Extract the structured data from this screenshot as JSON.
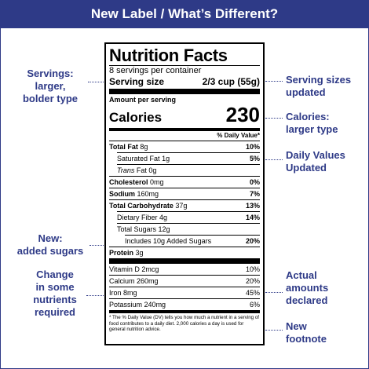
{
  "header": {
    "title": "New Label / What’s Different?"
  },
  "notes": {
    "servings": [
      "Servings:",
      "larger,",
      "bolder type"
    ],
    "serving_sizes": [
      "Serving sizes",
      "updated"
    ],
    "calories": [
      "Calories:",
      "larger type"
    ],
    "daily_values": [
      "Daily Values",
      "Updated"
    ],
    "added_sugars": [
      "New:",
      "added sugars"
    ],
    "nutrients": [
      "Change",
      "in some",
      "nutrients",
      "required"
    ],
    "actual_amounts": [
      "Actual",
      "amounts",
      "declared"
    ],
    "footnote": [
      "New",
      "footnote"
    ]
  },
  "label": {
    "title": "Nutrition Facts",
    "servings_per_container": "8 servings per container",
    "serving_size_label": "Serving size",
    "serving_size_value": "2/3 cup (55g)",
    "amount_per_serving": "Amount per serving",
    "calories_label": "Calories",
    "calories_value": "230",
    "dv_header": "% Daily Value*",
    "nutrients": [
      {
        "name": "Total Fat",
        "amount": "8g",
        "dv": "10%"
      },
      {
        "name": "Saturated Fat",
        "amount": "1g",
        "dv": "5%"
      },
      {
        "name": "Trans",
        "name_suffix": "Fat",
        "amount": "0g",
        "dv": ""
      },
      {
        "name": "Cholesterol",
        "amount": "0mg",
        "dv": "0%"
      },
      {
        "name": "Sodium",
        "amount": "160mg",
        "dv": "7%"
      },
      {
        "name": "Total Carbohydrate",
        "amount": "37g",
        "dv": "13%"
      },
      {
        "name": "Dietary Fiber",
        "amount": "4g",
        "dv": "14%"
      },
      {
        "name": "Total Sugars",
        "amount": "12g",
        "dv": ""
      },
      {
        "name": "Includes",
        "amount": "10g Added Sugars",
        "dv": "20%"
      },
      {
        "name": "Protein",
        "amount": "3g",
        "dv": ""
      }
    ],
    "micros": [
      {
        "name": "Vitamin D",
        "amount": "2mcg",
        "dv": "10%"
      },
      {
        "name": "Calcium",
        "amount": "260mg",
        "dv": "20%"
      },
      {
        "name": "Iron",
        "amount": "8mg",
        "dv": "45%"
      },
      {
        "name": "Potassium",
        "amount": "240mg",
        "dv": "6%"
      }
    ],
    "footnote": "* The % Daily Value (DV) tells you how much a nutrient in a serving of food contributes to a daily diet. 2,000 calories a day is used for general nutrition advice."
  }
}
